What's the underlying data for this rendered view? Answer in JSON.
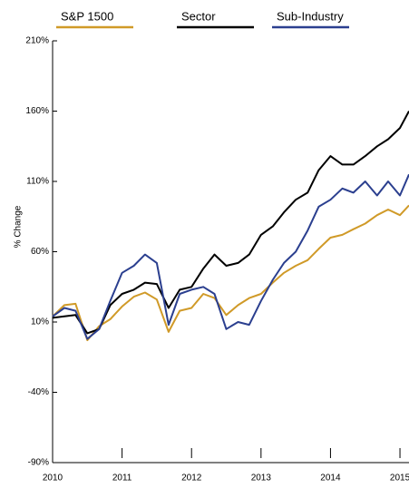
{
  "chart_data": {
    "type": "line",
    "y_label": "% Change",
    "x": [
      2010,
      2010.17,
      2010.33,
      2010.5,
      2010.67,
      2010.83,
      2011,
      2011.17,
      2011.33,
      2011.5,
      2011.67,
      2011.83,
      2012,
      2012.17,
      2012.33,
      2012.5,
      2012.67,
      2012.83,
      2013,
      2013.17,
      2013.33,
      2013.5,
      2013.67,
      2013.83,
      2014,
      2014.17,
      2014.33,
      2014.5,
      2014.67,
      2014.83,
      2015,
      2015.13
    ],
    "series": [
      {
        "name": "S&P 1500",
        "color": "#d09a28",
        "values": [
          14,
          22,
          23,
          -3,
          7,
          12,
          21,
          28,
          31,
          26,
          3,
          18,
          20,
          30,
          27,
          15,
          22,
          27,
          30,
          38,
          45,
          50,
          54,
          62,
          70,
          72,
          76,
          80,
          86,
          90,
          86,
          93
        ]
      },
      {
        "name": "Sector",
        "color": "#000000",
        "values": [
          13,
          14,
          15,
          2,
          5,
          22,
          30,
          33,
          38,
          37,
          20,
          33,
          35,
          48,
          58,
          50,
          52,
          58,
          72,
          78,
          88,
          97,
          102,
          118,
          128,
          122,
          122,
          128,
          135,
          140,
          148,
          160
        ]
      },
      {
        "name": "Sub-Industry",
        "color": "#2b3f8f",
        "values": [
          14,
          20,
          18,
          -2,
          5,
          25,
          45,
          50,
          58,
          52,
          8,
          30,
          33,
          35,
          30,
          5,
          10,
          8,
          25,
          40,
          52,
          60,
          75,
          92,
          97,
          105,
          102,
          110,
          100,
          110,
          100,
          115
        ]
      }
    ],
    "xlim": [
      2010,
      2015.13
    ],
    "xticks": [
      2010,
      2011,
      2012,
      2013,
      2014,
      2015
    ],
    "ylim": [
      -90,
      210
    ],
    "yticks": [
      {
        "value": -90,
        "label": "-90%"
      },
      {
        "value": -40,
        "label": "-40%"
      },
      {
        "value": 10,
        "label": "10%"
      },
      {
        "value": 60,
        "label": "60%"
      },
      {
        "value": 110,
        "label": "110%"
      },
      {
        "value": 160,
        "label": "160%"
      },
      {
        "value": 210,
        "label": "210%"
      }
    ],
    "legend": "top"
  }
}
